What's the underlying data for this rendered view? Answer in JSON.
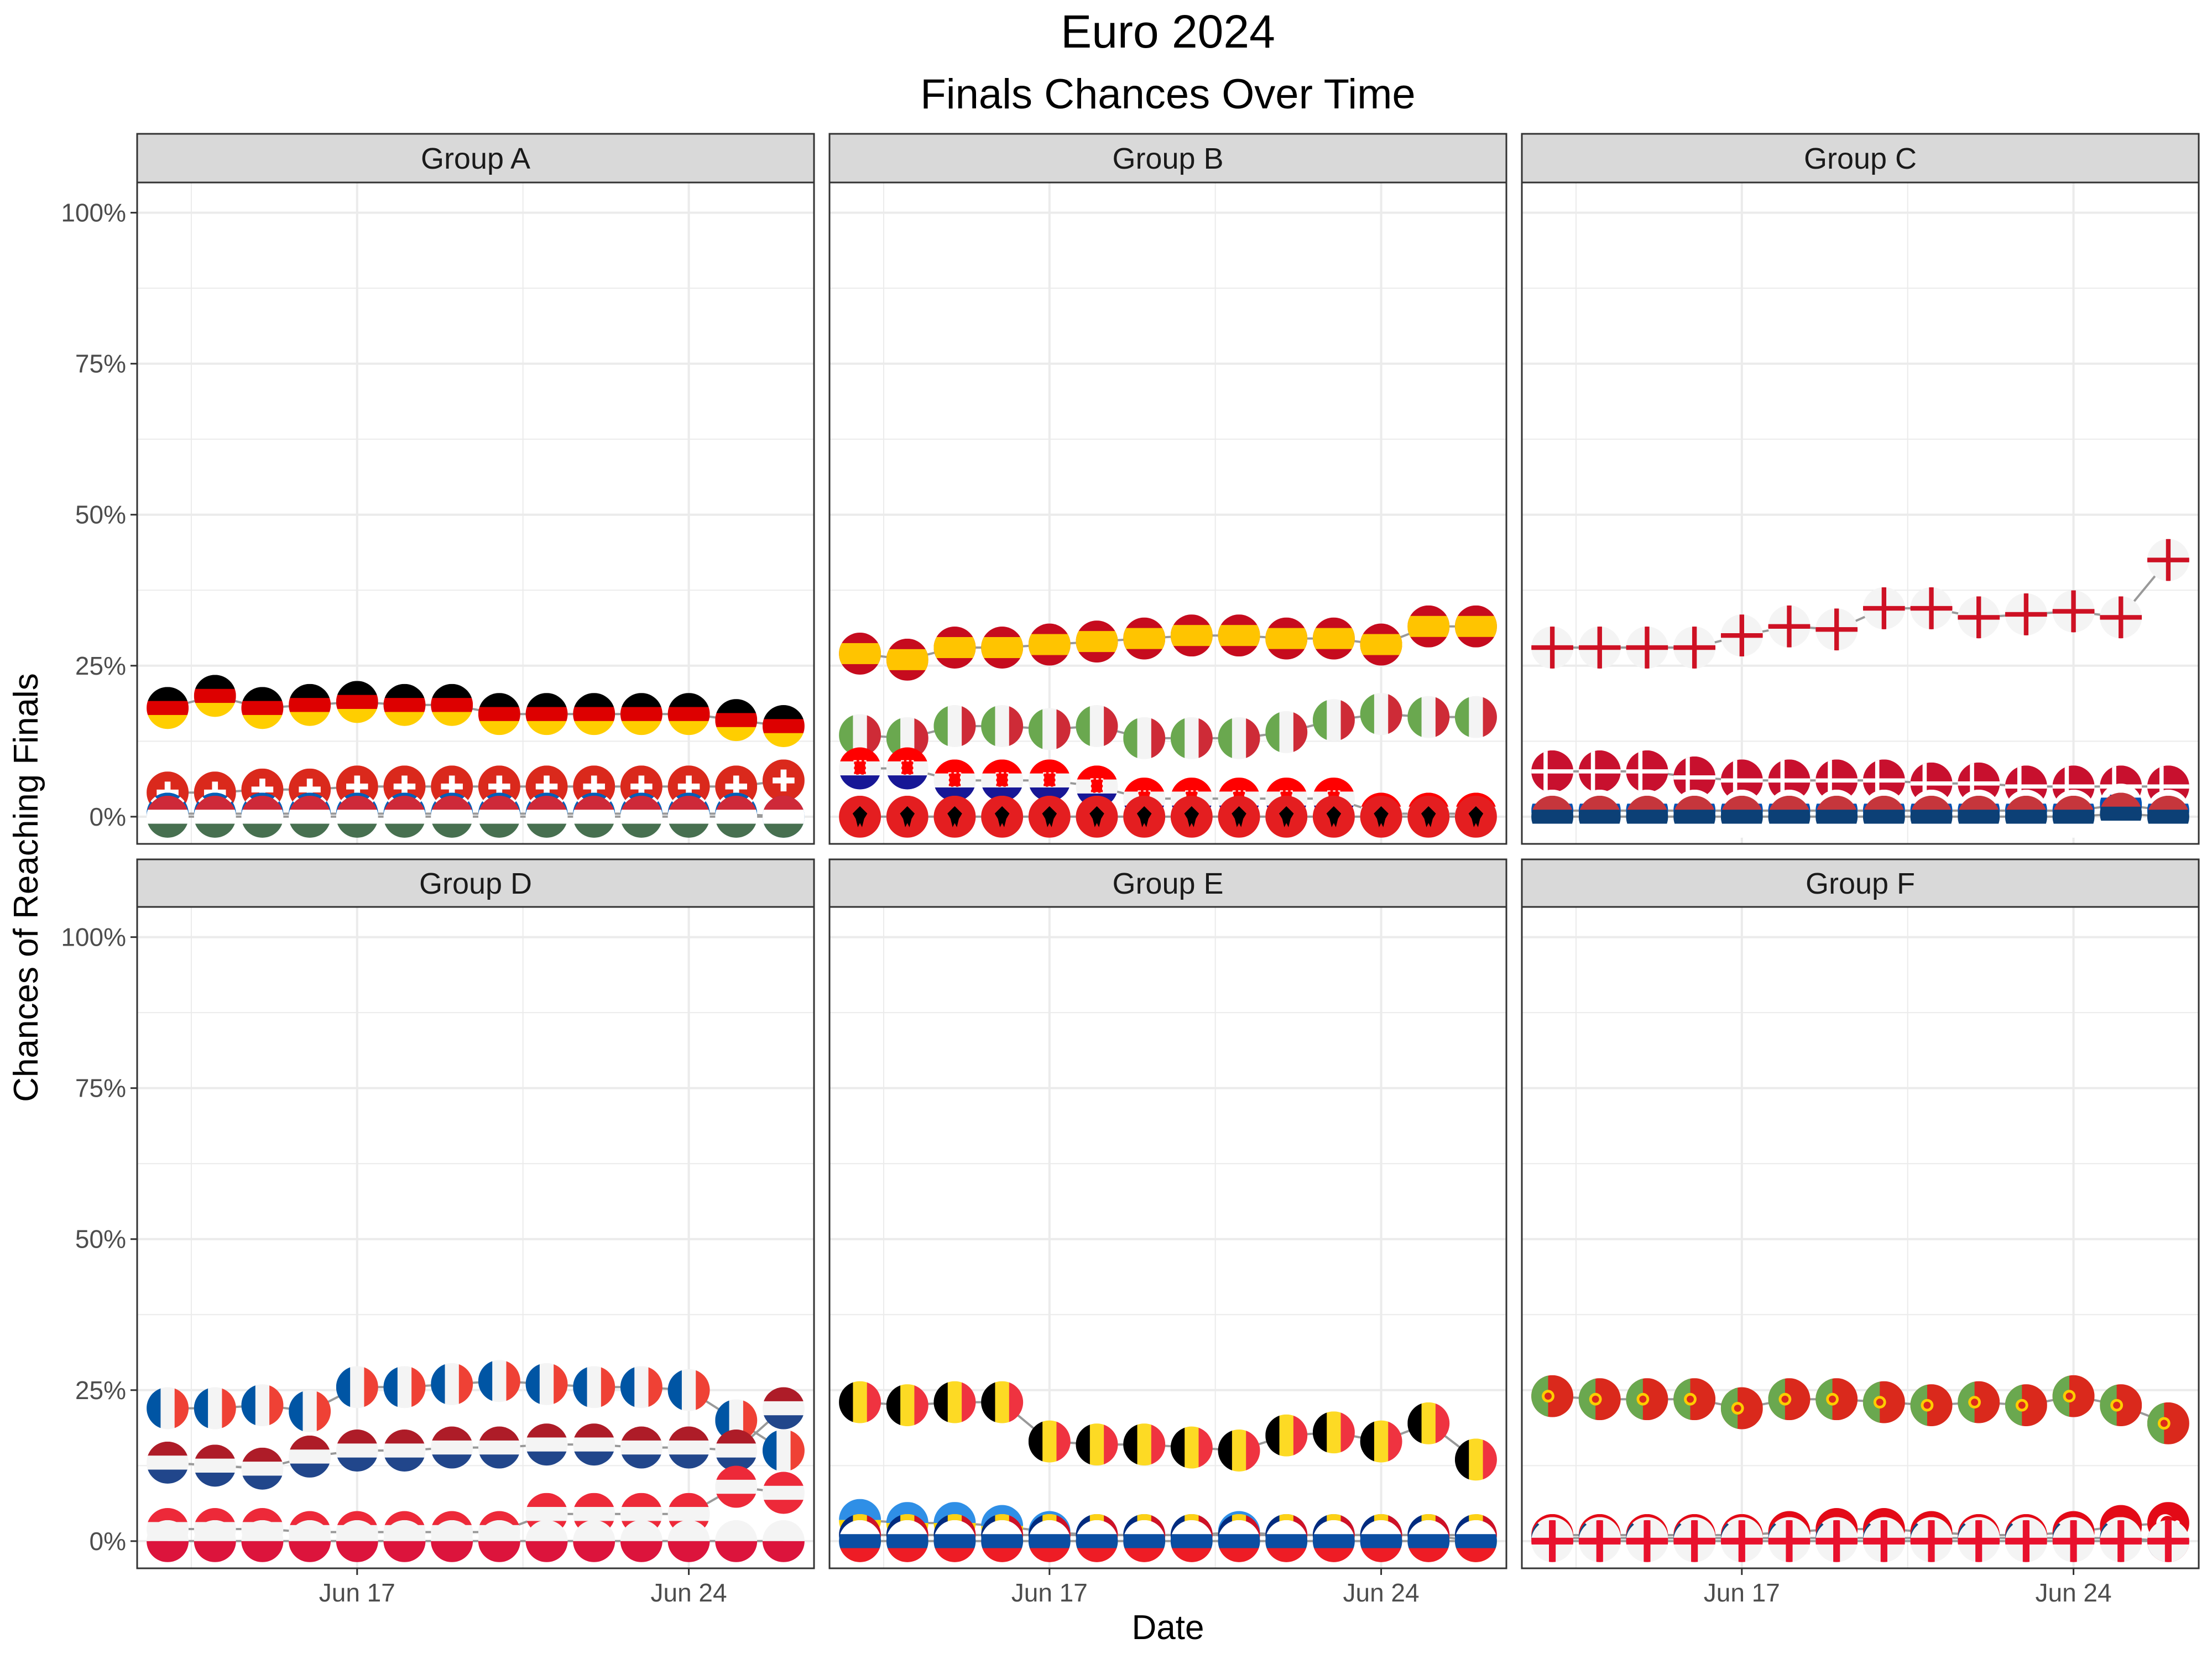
{
  "chart_data": {
    "type": "line",
    "title": "Euro 2024",
    "subtitle": "Finals Chances Over Time",
    "xlabel": "Date",
    "ylabel": "Chances of Reaching Finals",
    "x": [
      "Jun 13",
      "Jun 14",
      "Jun 15",
      "Jun 16",
      "Jun 17",
      "Jun 18",
      "Jun 19",
      "Jun 20",
      "Jun 21",
      "Jun 22",
      "Jun 23",
      "Jun 24",
      "Jun 25",
      "Jun 26"
    ],
    "x_ticks": [
      "Jun 17",
      "Jun 24"
    ],
    "y_ticks": [
      "0%",
      "25%",
      "50%",
      "75%",
      "100%"
    ],
    "ylim": [
      -0.045,
      1.05
    ],
    "grid": true,
    "markers": "country flags",
    "panels": [
      {
        "name": "Group A",
        "series": [
          {
            "icon": "flag-germany",
            "values": [
              0.18,
              0.2,
              0.18,
              0.185,
              0.19,
              0.185,
              0.185,
              0.17,
              0.17,
              0.17,
              0.17,
              0.17,
              0.16,
              0.15
            ]
          },
          {
            "icon": "flag-switzerland",
            "values": [
              0.04,
              0.04,
              0.045,
              0.045,
              0.05,
              0.05,
              0.05,
              0.05,
              0.05,
              0.05,
              0.05,
              0.05,
              0.05,
              0.06
            ]
          },
          {
            "icon": "flag-scotland",
            "values": [
              0.005,
              0.005,
              0.005,
              0.005,
              0.005,
              0.005,
              0.005,
              0.005,
              0.005,
              0.005,
              0.005,
              0.005,
              0.005,
              0.0
            ]
          },
          {
            "icon": "flag-hungary",
            "values": [
              0.0,
              0.0,
              0.0,
              0.0,
              0.0,
              0.0,
              0.0,
              0.0,
              0.0,
              0.0,
              0.0,
              0.0,
              0.0,
              0.0
            ]
          }
        ]
      },
      {
        "name": "Group B",
        "series": [
          {
            "icon": "flag-spain",
            "values": [
              0.27,
              0.26,
              0.28,
              0.28,
              0.285,
              0.29,
              0.295,
              0.3,
              0.3,
              0.295,
              0.295,
              0.285,
              0.315,
              0.315
            ]
          },
          {
            "icon": "flag-italy",
            "values": [
              0.135,
              0.13,
              0.15,
              0.15,
              0.145,
              0.15,
              0.13,
              0.13,
              0.13,
              0.14,
              0.16,
              0.17,
              0.165,
              0.165
            ]
          },
          {
            "icon": "flag-croatia",
            "values": [
              0.08,
              0.08,
              0.06,
              0.06,
              0.06,
              0.05,
              0.03,
              0.03,
              0.03,
              0.03,
              0.03,
              0.005,
              0.005,
              0.005
            ]
          },
          {
            "icon": "flag-albania",
            "values": [
              0.0,
              0.0,
              0.0,
              0.0,
              0.0,
              0.0,
              0.0,
              0.0,
              0.0,
              0.0,
              0.0,
              0.0,
              0.0,
              0.0
            ]
          }
        ]
      },
      {
        "name": "Group C",
        "series": [
          {
            "icon": "flag-england",
            "values": [
              0.28,
              0.28,
              0.28,
              0.28,
              0.3,
              0.315,
              0.31,
              0.345,
              0.345,
              0.33,
              0.335,
              0.34,
              0.33,
              0.425
            ]
          },
          {
            "icon": "flag-denmark",
            "values": [
              0.075,
              0.075,
              0.075,
              0.065,
              0.06,
              0.06,
              0.06,
              0.06,
              0.055,
              0.055,
              0.05,
              0.05,
              0.05,
              0.05
            ]
          },
          {
            "icon": "flag-slovenia",
            "values": [
              0.01,
              0.01,
              0.01,
              0.01,
              0.01,
              0.01,
              0.01,
              0.01,
              0.01,
              0.01,
              0.01,
              0.01,
              0.02,
              0.01
            ]
          },
          {
            "icon": "flag-serbia",
            "values": [
              0.0,
              0.0,
              0.0,
              0.0,
              0.0,
              0.0,
              0.0,
              0.0,
              0.0,
              0.0,
              0.0,
              0.0,
              0.005,
              0.0
            ]
          }
        ]
      },
      {
        "name": "Group D",
        "series": [
          {
            "icon": "flag-france",
            "values": [
              0.22,
              0.22,
              0.225,
              0.215,
              0.255,
              0.255,
              0.26,
              0.265,
              0.26,
              0.255,
              0.255,
              0.25,
              0.2,
              0.15
            ]
          },
          {
            "icon": "flag-netherlands",
            "values": [
              0.13,
              0.125,
              0.12,
              0.14,
              0.15,
              0.15,
              0.155,
              0.155,
              0.16,
              0.16,
              0.155,
              0.155,
              0.15,
              0.22
            ]
          },
          {
            "icon": "flag-austria",
            "values": [
              0.02,
              0.02,
              0.02,
              0.015,
              0.015,
              0.015,
              0.015,
              0.015,
              0.045,
              0.045,
              0.045,
              0.045,
              0.09,
              0.08
            ]
          },
          {
            "icon": "flag-poland",
            "values": [
              0.0,
              0.0,
              0.0,
              0.0,
              0.0,
              0.0,
              0.0,
              0.0,
              0.0,
              0.0,
              0.0,
              0.0,
              0.0,
              0.0
            ]
          }
        ]
      },
      {
        "name": "Group E",
        "series": [
          {
            "icon": "flag-belgium",
            "values": [
              0.23,
              0.225,
              0.23,
              0.23,
              0.165,
              0.16,
              0.16,
              0.155,
              0.15,
              0.175,
              0.18,
              0.165,
              0.195,
              0.135
            ]
          },
          {
            "icon": "flag-ukraine",
            "values": [
              0.035,
              0.03,
              0.03,
              0.025,
              0.015,
              0.01,
              0.01,
              0.01,
              0.015,
              0.01,
              0.01,
              0.01,
              0.01,
              0.0
            ]
          },
          {
            "icon": "flag-romania",
            "values": [
              0.01,
              0.01,
              0.01,
              0.01,
              0.01,
              0.01,
              0.01,
              0.01,
              0.01,
              0.01,
              0.01,
              0.01,
              0.01,
              0.01
            ]
          },
          {
            "icon": "flag-slovakia",
            "values": [
              0.0,
              0.0,
              0.0,
              0.0,
              0.0,
              0.0,
              0.0,
              0.0,
              0.0,
              0.0,
              0.0,
              0.0,
              0.0,
              0.0
            ]
          }
        ]
      },
      {
        "name": "Group F",
        "series": [
          {
            "icon": "flag-portugal",
            "values": [
              0.24,
              0.235,
              0.235,
              0.235,
              0.22,
              0.235,
              0.235,
              0.23,
              0.225,
              0.23,
              0.225,
              0.24,
              0.225,
              0.195
            ]
          },
          {
            "icon": "flag-turkey",
            "values": [
              0.01,
              0.01,
              0.01,
              0.01,
              0.01,
              0.015,
              0.02,
              0.02,
              0.015,
              0.01,
              0.01,
              0.015,
              0.025,
              0.03
            ]
          },
          {
            "icon": "flag-czechia",
            "values": [
              0.005,
              0.005,
              0.005,
              0.005,
              0.005,
              0.005,
              0.005,
              0.005,
              0.005,
              0.005,
              0.005,
              0.005,
              0.005,
              0.0
            ]
          },
          {
            "icon": "flag-georgia",
            "values": [
              0.0,
              0.0,
              0.0,
              0.0,
              0.0,
              0.0,
              0.0,
              0.0,
              0.0,
              0.0,
              0.0,
              0.0,
              0.0,
              0.0
            ]
          }
        ]
      }
    ]
  },
  "colors": {
    "strip_fill": "#d9d9d9",
    "panel_border": "#333333",
    "grid": "#ebebeb",
    "line": "#999999",
    "text": "#000000",
    "tick_text": "#4d4d4d"
  }
}
